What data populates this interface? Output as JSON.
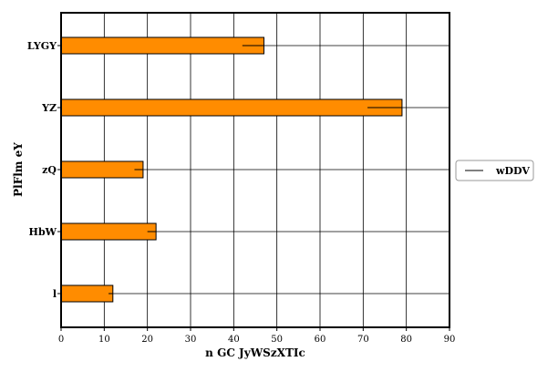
{
  "chart_data": {
    "type": "bar",
    "orientation": "horizontal",
    "categories": [
      "LYGY",
      "YZ",
      "zQ",
      "HbW",
      "l"
    ],
    "series": [
      {
        "values": [
          47,
          79,
          19,
          22,
          12
        ],
        "color": "#ff8c00"
      }
    ],
    "line_series": {
      "name": "wDDV",
      "values": [
        42,
        71,
        17,
        20,
        11
      ],
      "color": "#000000"
    },
    "xlabel": "n GC JyWSzXTIc",
    "ylabel": "PlFlm eY",
    "xlim": [
      0,
      90
    ],
    "xticks": [
      0,
      10,
      20,
      30,
      40,
      50,
      60,
      70,
      80,
      90
    ],
    "grid": true,
    "legend_position": "right"
  }
}
